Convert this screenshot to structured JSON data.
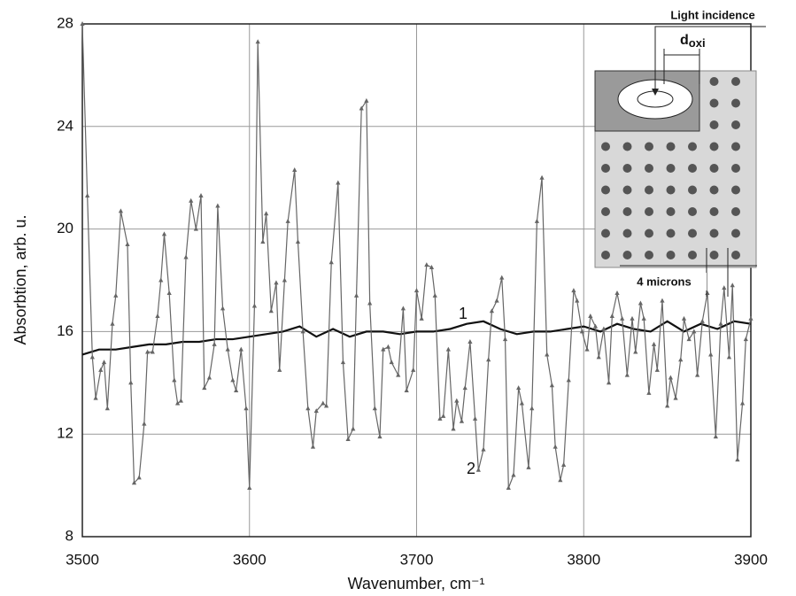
{
  "chart_data": {
    "type": "line",
    "xlabel": "Wavenumber, cm⁻¹",
    "ylabel": "Absorbtion, arb. u.",
    "xlim": [
      3500,
      3900
    ],
    "xticks": [
      3500,
      3600,
      3700,
      3800,
      3900
    ],
    "ylim": [
      8,
      28
    ],
    "yticks": [
      8,
      12,
      16,
      20,
      24,
      28
    ],
    "grid": true,
    "series": [
      {
        "name": "1",
        "color": "#111111",
        "markers": false,
        "x": [
          3500,
          3510,
          3520,
          3530,
          3540,
          3550,
          3560,
          3570,
          3580,
          3590,
          3600,
          3610,
          3620,
          3630,
          3640,
          3650,
          3660,
          3670,
          3680,
          3690,
          3700,
          3710,
          3720,
          3730,
          3740,
          3750,
          3760,
          3770,
          3780,
          3790,
          3800,
          3810,
          3820,
          3830,
          3840,
          3850,
          3860,
          3870,
          3880,
          3890,
          3900
        ],
        "values": [
          15.1,
          15.3,
          15.3,
          15.4,
          15.5,
          15.5,
          15.6,
          15.6,
          15.7,
          15.7,
          15.8,
          15.9,
          16.0,
          16.2,
          15.8,
          16.1,
          15.8,
          16.0,
          16.0,
          15.9,
          16.0,
          16.0,
          16.1,
          16.3,
          16.4,
          16.1,
          15.9,
          16.0,
          16.0,
          16.1,
          16.2,
          16.0,
          16.3,
          16.1,
          16.0,
          16.4,
          16.0,
          16.3,
          16.1,
          16.4,
          16.3
        ]
      },
      {
        "name": "2",
        "color": "#666666",
        "markers": true,
        "x": [
          3500,
          3503,
          3506,
          3508,
          3511,
          3513,
          3515,
          3518,
          3520,
          3523,
          3527,
          3529,
          3531,
          3534,
          3537,
          3539,
          3542,
          3545,
          3547,
          3549,
          3552,
          3555,
          3557,
          3559,
          3562,
          3565,
          3568,
          3571,
          3573,
          3576,
          3579,
          3581,
          3584,
          3587,
          3590,
          3592,
          3595,
          3598,
          3600,
          3603,
          3605,
          3608,
          3610,
          3613,
          3616,
          3618,
          3621,
          3623,
          3627,
          3629,
          3632,
          3635,
          3638,
          3640,
          3644,
          3646,
          3649,
          3653,
          3656,
          3659,
          3662,
          3664,
          3667,
          3670,
          3672,
          3675,
          3678,
          3680,
          3683,
          3685,
          3689,
          3692,
          3694,
          3698,
          3700,
          3703,
          3706,
          3709,
          3711,
          3714,
          3716,
          3719,
          3722,
          3724,
          3727,
          3729,
          3732,
          3735,
          3737,
          3740,
          3743,
          3745,
          3748,
          3751,
          3753,
          3755,
          3758,
          3761,
          3763,
          3767,
          3769,
          3772,
          3775,
          3778,
          3781,
          3783,
          3786,
          3788,
          3791,
          3794,
          3796,
          3799,
          3802,
          3804,
          3807,
          3809,
          3812,
          3815,
          3817,
          3820,
          3823,
          3826,
          3829,
          3831,
          3834,
          3836,
          3839,
          3842,
          3844,
          3847,
          3850,
          3852,
          3855,
          3858,
          3860,
          3863,
          3866,
          3868,
          3871,
          3874,
          3876,
          3879,
          3882,
          3884,
          3887,
          3889,
          3892,
          3895,
          3897,
          3900
        ],
        "values": [
          28,
          21.3,
          15,
          13.4,
          14.5,
          14.8,
          13,
          16.3,
          17.4,
          20.7,
          19.4,
          14,
          10.1,
          10.3,
          12.4,
          15.2,
          15.2,
          16.6,
          18,
          19.8,
          17.5,
          14.1,
          13.2,
          13.3,
          18.9,
          21.1,
          20,
          21.3,
          13.8,
          14.2,
          15.5,
          20.9,
          16.9,
          15.3,
          14.1,
          13.7,
          15.3,
          13,
          9.9,
          17,
          27.3,
          19.5,
          20.6,
          16.8,
          17.9,
          14.5,
          18,
          20.3,
          22.3,
          19.5,
          16,
          13,
          11.5,
          12.9,
          13.2,
          13.1,
          18.7,
          21.8,
          14.8,
          11.8,
          12.2,
          17.4,
          24.7,
          25,
          17.1,
          13,
          11.9,
          15.3,
          15.4,
          14.8,
          14.3,
          16.9,
          13.7,
          14.5,
          17.6,
          16.5,
          18.6,
          18.5,
          17.4,
          12.6,
          12.7,
          15.3,
          12.2,
          13.3,
          12.5,
          13.8,
          15.6,
          12.6,
          10.6,
          11.4,
          14.9,
          16.8,
          17.2,
          18.1,
          15.7,
          9.9,
          10.4,
          13.8,
          13.2,
          10.7,
          13,
          20.3,
          22,
          15.1,
          13.9,
          11.5,
          10.2,
          10.8,
          14.1,
          17.6,
          17.2,
          16,
          15.3,
          16.6,
          16.2,
          15,
          16.1,
          14,
          16.6,
          17.5,
          16.5,
          14.3,
          16.5,
          15.2,
          17.1,
          16.5,
          13.6,
          15.5,
          14.5,
          17.2,
          13.1,
          14.2,
          13.4,
          14.9,
          16.5,
          15.7,
          16,
          14.3,
          16.4,
          17.5,
          15.1,
          11.9,
          16.3,
          17.7,
          15,
          17.8,
          11,
          13.2,
          15.7,
          16.5
        ]
      }
    ],
    "inset": {
      "incidence_label": "Light incidence",
      "d_label": "d",
      "d_subscript": "oxi",
      "scale_label": "4 microns"
    }
  }
}
